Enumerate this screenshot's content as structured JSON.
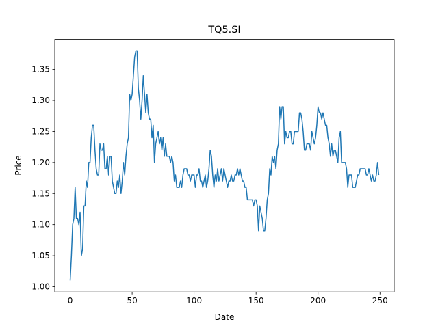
{
  "chart_data": {
    "type": "line",
    "title": "TQ5.SI",
    "x_label": "Date",
    "y_label": "Price",
    "color": "#1f77b4",
    "xlim": [
      -12.45,
      261.45
    ],
    "ylim": [
      0.9915,
      1.3985
    ],
    "xticks": [
      0,
      50,
      100,
      150,
      200,
      250
    ],
    "yticks": [
      {
        "value": 1.0,
        "label": "1.00"
      },
      1.05,
      {
        "value": 1.1,
        "label": "1.10"
      },
      1.15,
      {
        "value": 1.2,
        "label": "1.20"
      },
      1.25,
      {
        "value": 1.3,
        "label": "1.30"
      },
      1.35
    ],
    "x": [
      0,
      1,
      2,
      3,
      4,
      5,
      6,
      7,
      8,
      9,
      10,
      11,
      12,
      13,
      14,
      15,
      16,
      17,
      18,
      19,
      20,
      21,
      22,
      23,
      24,
      25,
      26,
      27,
      28,
      29,
      30,
      31,
      32,
      33,
      34,
      35,
      36,
      37,
      38,
      39,
      40,
      41,
      42,
      43,
      44,
      45,
      46,
      47,
      48,
      49,
      50,
      51,
      52,
      53,
      54,
      55,
      56,
      57,
      58,
      59,
      60,
      61,
      62,
      63,
      64,
      65,
      66,
      67,
      68,
      69,
      70,
      71,
      72,
      73,
      74,
      75,
      76,
      77,
      78,
      79,
      80,
      81,
      82,
      83,
      84,
      85,
      86,
      87,
      88,
      89,
      90,
      91,
      92,
      93,
      94,
      95,
      96,
      97,
      98,
      99,
      100,
      101,
      102,
      103,
      104,
      105,
      106,
      107,
      108,
      109,
      110,
      111,
      112,
      113,
      114,
      115,
      116,
      117,
      118,
      119,
      120,
      121,
      122,
      123,
      124,
      125,
      126,
      127,
      128,
      129,
      130,
      131,
      132,
      133,
      134,
      135,
      136,
      137,
      138,
      139,
      140,
      141,
      142,
      143,
      144,
      145,
      146,
      147,
      148,
      149,
      150,
      151,
      152,
      153,
      154,
      155,
      156,
      157,
      158,
      159,
      160,
      161,
      162,
      163,
      164,
      165,
      166,
      167,
      168,
      169,
      170,
      171,
      172,
      173,
      174,
      175,
      176,
      177,
      178,
      179,
      180,
      181,
      182,
      183,
      184,
      185,
      186,
      187,
      188,
      189,
      190,
      191,
      192,
      193,
      194,
      195,
      196,
      197,
      198,
      199,
      200,
      201,
      202,
      203,
      204,
      205,
      206,
      207,
      208,
      209,
      210,
      211,
      212,
      213,
      214,
      215,
      216,
      217,
      218,
      219,
      220,
      221,
      222,
      223,
      224,
      225,
      226,
      227,
      228,
      229,
      230,
      231,
      232,
      233,
      234,
      235,
      236,
      237,
      238,
      239,
      240,
      241,
      242,
      243,
      244,
      245,
      246,
      247,
      248,
      249
    ],
    "values": [
      1.01,
      1.05,
      1.1,
      1.11,
      1.16,
      1.11,
      1.11,
      1.1,
      1.12,
      1.05,
      1.06,
      1.13,
      1.13,
      1.17,
      1.16,
      1.2,
      1.2,
      1.24,
      1.26,
      1.26,
      1.22,
      1.19,
      1.18,
      1.18,
      1.23,
      1.22,
      1.22,
      1.23,
      1.19,
      1.19,
      1.21,
      1.18,
      1.21,
      1.21,
      1.17,
      1.16,
      1.15,
      1.15,
      1.17,
      1.16,
      1.18,
      1.15,
      1.17,
      1.2,
      1.18,
      1.21,
      1.23,
      1.24,
      1.31,
      1.3,
      1.31,
      1.34,
      1.37,
      1.38,
      1.38,
      1.32,
      1.3,
      1.27,
      1.3,
      1.34,
      1.31,
      1.28,
      1.31,
      1.28,
      1.27,
      1.27,
      1.24,
      1.26,
      1.2,
      1.23,
      1.24,
      1.25,
      1.23,
      1.24,
      1.22,
      1.24,
      1.21,
      1.23,
      1.21,
      1.21,
      1.21,
      1.2,
      1.21,
      1.2,
      1.17,
      1.18,
      1.16,
      1.16,
      1.16,
      1.17,
      1.16,
      1.18,
      1.19,
      1.19,
      1.19,
      1.18,
      1.18,
      1.17,
      1.18,
      1.18,
      1.18,
      1.16,
      1.18,
      1.18,
      1.19,
      1.17,
      1.17,
      1.16,
      1.17,
      1.18,
      1.16,
      1.17,
      1.19,
      1.22,
      1.21,
      1.18,
      1.16,
      1.18,
      1.17,
      1.19,
      1.17,
      1.18,
      1.19,
      1.17,
      1.19,
      1.18,
      1.17,
      1.16,
      1.17,
      1.17,
      1.18,
      1.17,
      1.17,
      1.18,
      1.18,
      1.19,
      1.18,
      1.19,
      1.18,
      1.17,
      1.17,
      1.16,
      1.16,
      1.14,
      1.14,
      1.14,
      1.14,
      1.14,
      1.13,
      1.14,
      1.14,
      1.13,
      1.09,
      1.13,
      1.12,
      1.11,
      1.09,
      1.09,
      1.11,
      1.14,
      1.15,
      1.19,
      1.18,
      1.21,
      1.2,
      1.21,
      1.19,
      1.22,
      1.23,
      1.29,
      1.27,
      1.29,
      1.29,
      1.23,
      1.25,
      1.24,
      1.24,
      1.25,
      1.25,
      1.23,
      1.23,
      1.25,
      1.25,
      1.25,
      1.25,
      1.28,
      1.28,
      1.27,
      1.25,
      1.22,
      1.22,
      1.23,
      1.23,
      1.23,
      1.22,
      1.25,
      1.24,
      1.23,
      1.24,
      1.26,
      1.29,
      1.28,
      1.28,
      1.27,
      1.28,
      1.27,
      1.26,
      1.26,
      1.24,
      1.23,
      1.21,
      1.23,
      1.21,
      1.22,
      1.22,
      1.21,
      1.2,
      1.24,
      1.25,
      1.2,
      1.2,
      1.2,
      1.2,
      1.19,
      1.16,
      1.18,
      1.18,
      1.18,
      1.16,
      1.16,
      1.16,
      1.17,
      1.18,
      1.18,
      1.19,
      1.19,
      1.19,
      1.19,
      1.19,
      1.18,
      1.18,
      1.19,
      1.18,
      1.17,
      1.18,
      1.17,
      1.17,
      1.18,
      1.2,
      1.18
    ]
  }
}
